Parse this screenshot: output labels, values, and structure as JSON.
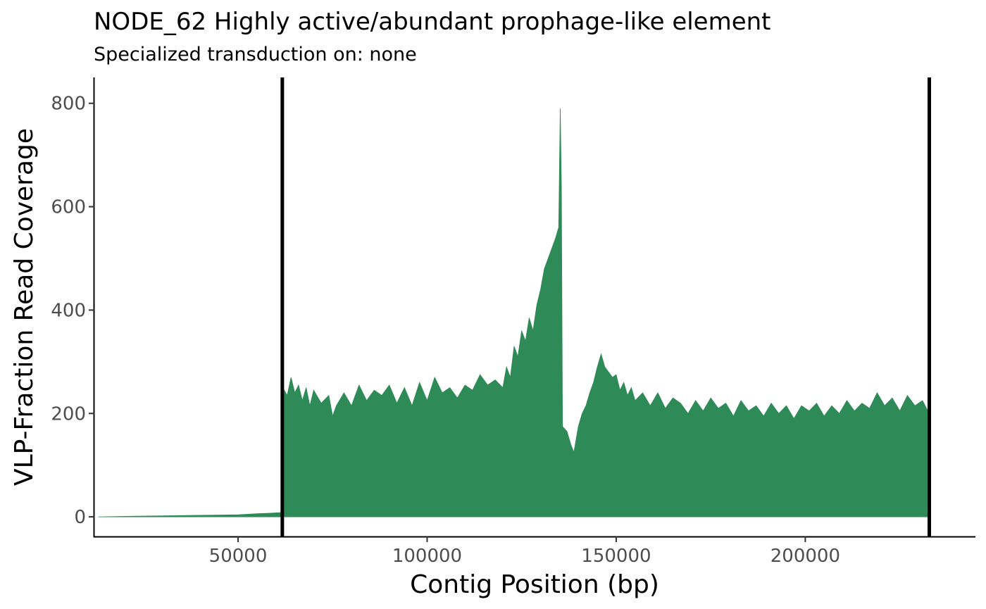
{
  "chart_data": {
    "type": "area",
    "title": "NODE_62 Highly active/abundant prophage-like element",
    "subtitle": "Specialized transduction on: none",
    "xlabel": "Contig Position (bp)",
    "ylabel": "VLP-Fraction Read Coverage",
    "xlim": [
      12000,
      245000
    ],
    "ylim": [
      -38,
      850
    ],
    "x_ticks": [
      50000,
      100000,
      150000,
      200000
    ],
    "x_tick_labels": [
      "50000",
      "100000",
      "150000",
      "200000"
    ],
    "y_ticks": [
      0,
      200,
      400,
      600,
      800
    ],
    "y_tick_labels": [
      "0",
      "200",
      "400",
      "600",
      "800"
    ],
    "grid": false,
    "fill_color": "#2e8b57",
    "boundary_lines": [
      61700,
      232800
    ],
    "series": [
      {
        "points": [
          [
            13000,
            0
          ],
          [
            20000,
            1
          ],
          [
            30000,
            2
          ],
          [
            40000,
            3
          ],
          [
            50000,
            4
          ],
          [
            55000,
            6
          ],
          [
            58000,
            7
          ],
          [
            61000,
            8
          ],
          [
            61700,
            9
          ],
          [
            61800,
            250
          ],
          [
            63000,
            235
          ],
          [
            64000,
            270
          ],
          [
            65000,
            240
          ],
          [
            66000,
            255
          ],
          [
            67000,
            225
          ],
          [
            68000,
            250
          ],
          [
            69000,
            215
          ],
          [
            70000,
            245
          ],
          [
            72000,
            220
          ],
          [
            74000,
            235
          ],
          [
            75000,
            195
          ],
          [
            76000,
            215
          ],
          [
            78000,
            240
          ],
          [
            80000,
            215
          ],
          [
            82000,
            255
          ],
          [
            84000,
            225
          ],
          [
            86000,
            245
          ],
          [
            88000,
            235
          ],
          [
            90000,
            255
          ],
          [
            92000,
            220
          ],
          [
            94000,
            250
          ],
          [
            96000,
            215
          ],
          [
            98000,
            260
          ],
          [
            100000,
            225
          ],
          [
            102000,
            270
          ],
          [
            104000,
            240
          ],
          [
            106000,
            250
          ],
          [
            108000,
            230
          ],
          [
            110000,
            255
          ],
          [
            112000,
            245
          ],
          [
            114000,
            275
          ],
          [
            116000,
            255
          ],
          [
            118000,
            265
          ],
          [
            120000,
            250
          ],
          [
            121000,
            290
          ],
          [
            122000,
            270
          ],
          [
            123000,
            330
          ],
          [
            124000,
            310
          ],
          [
            125000,
            360
          ],
          [
            126000,
            340
          ],
          [
            127000,
            385
          ],
          [
            128000,
            360
          ],
          [
            129000,
            410
          ],
          [
            130000,
            440
          ],
          [
            131000,
            480
          ],
          [
            132000,
            500
          ],
          [
            133000,
            520
          ],
          [
            134000,
            540
          ],
          [
            134800,
            560
          ],
          [
            135200,
            790
          ],
          [
            135500,
            640
          ],
          [
            135800,
            175
          ],
          [
            137000,
            165
          ],
          [
            138000,
            140
          ],
          [
            138800,
            125
          ],
          [
            140000,
            175
          ],
          [
            141000,
            200
          ],
          [
            142000,
            215
          ],
          [
            143000,
            240
          ],
          [
            144000,
            260
          ],
          [
            145000,
            290
          ],
          [
            146000,
            315
          ],
          [
            147000,
            290
          ],
          [
            148000,
            280
          ],
          [
            149000,
            270
          ],
          [
            150000,
            275
          ],
          [
            151000,
            245
          ],
          [
            152000,
            260
          ],
          [
            153000,
            235
          ],
          [
            154000,
            250
          ],
          [
            155000,
            225
          ],
          [
            157000,
            240
          ],
          [
            159000,
            215
          ],
          [
            161000,
            240
          ],
          [
            163000,
            210
          ],
          [
            165000,
            230
          ],
          [
            167000,
            220
          ],
          [
            169000,
            200
          ],
          [
            171000,
            225
          ],
          [
            173000,
            205
          ],
          [
            175000,
            230
          ],
          [
            177000,
            210
          ],
          [
            179000,
            220
          ],
          [
            181000,
            195
          ],
          [
            183000,
            225
          ],
          [
            185000,
            205
          ],
          [
            187000,
            215
          ],
          [
            189000,
            195
          ],
          [
            191000,
            220
          ],
          [
            193000,
            200
          ],
          [
            195000,
            215
          ],
          [
            197000,
            190
          ],
          [
            199000,
            215
          ],
          [
            201000,
            205
          ],
          [
            203000,
            220
          ],
          [
            205000,
            195
          ],
          [
            207000,
            215
          ],
          [
            209000,
            200
          ],
          [
            211000,
            225
          ],
          [
            213000,
            205
          ],
          [
            215000,
            220
          ],
          [
            217000,
            210
          ],
          [
            219000,
            240
          ],
          [
            221000,
            215
          ],
          [
            223000,
            230
          ],
          [
            225000,
            205
          ],
          [
            227000,
            235
          ],
          [
            229000,
            215
          ],
          [
            231000,
            225
          ],
          [
            232800,
            200
          ],
          [
            232850,
            0
          ]
        ]
      }
    ]
  }
}
